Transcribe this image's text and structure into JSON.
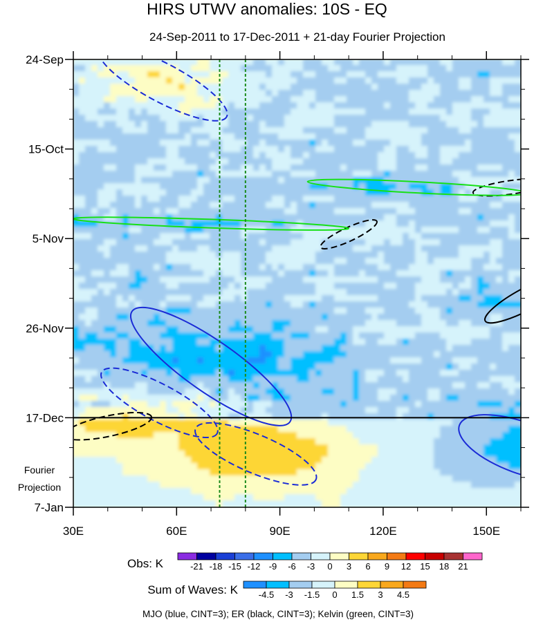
{
  "chart_data": {
    "type": "heatmap",
    "title": "HIRS UTWV anomalies: 10S - EQ",
    "subtitle": "24-Sep-2011 to 17-Dec-2011 + 21-day Fourier Projection",
    "x_axis": {
      "range": [
        30,
        160
      ],
      "units": "degrees east",
      "ticks": [
        30,
        60,
        90,
        120,
        150
      ],
      "tick_labels": [
        "30E",
        "60E",
        "90E",
        "120E",
        "150E"
      ]
    },
    "y_axis": {
      "range_days": [
        0,
        105
      ],
      "start": "24-Sep-2011",
      "ticks_days": [
        0,
        21,
        42,
        63,
        84,
        105
      ],
      "tick_labels": [
        "24-Sep",
        "15-Oct",
        "5-Nov",
        "26-Nov",
        "17-Dec",
        "7-Jan"
      ],
      "minor_tick_step_days": 7
    },
    "observation_end_day": 84,
    "projection_label_lines": [
      "Fourier",
      "Projection"
    ],
    "reference_longitudes": [
      72.5,
      80
    ],
    "obs_colorbar": {
      "label": "Obs: K",
      "levels": [
        -21,
        -18,
        -15,
        -12,
        -9,
        -6,
        -3,
        0,
        3,
        6,
        9,
        12,
        15,
        18,
        21
      ],
      "colors": [
        "#8a2be2",
        "#0000a0",
        "#1a3fd6",
        "#3a6ee8",
        "#1e90ff",
        "#00bfff",
        "#a4cdf0",
        "#d6f3fb",
        "#fdfdc4",
        "#fdd636",
        "#f9a81c",
        "#f47a14",
        "#ff0000",
        "#c80000",
        "#a83232",
        "#ff66cc"
      ]
    },
    "waves_colorbar": {
      "label": "Sum of Waves: K",
      "levels": [
        -4.5,
        -3,
        -1.5,
        0,
        1.5,
        3,
        4.5
      ],
      "colors": [
        "#1e90ff",
        "#00bfff",
        "#a4cdf0",
        "#d6f3fb",
        "#fdfdc4",
        "#fdd636",
        "#f9a81c",
        "#f47a14"
      ]
    },
    "contours": [
      {
        "wave": "MJO",
        "color": "#1a2bd6",
        "sign": "negative",
        "center": [
          56,
          5.5
        ],
        "semi_axes": [
          21,
          4.5
        ],
        "tilt_deg": 28
      },
      {
        "wave": "MJO",
        "color": "#1a2bd6",
        "sign": "positive",
        "center": [
          70,
          72
        ],
        "semi_axes": [
          28,
          6
        ],
        "tilt_deg": 35
      },
      {
        "wave": "MJO",
        "color": "#1a2bd6",
        "sign": "negative",
        "center": [
          55,
          80.5
        ],
        "semi_axes": [
          19,
          4.3
        ],
        "tilt_deg": 28
      },
      {
        "wave": "MJO",
        "color": "#1a2bd6",
        "sign": "negative",
        "center": [
          83,
          92.5
        ],
        "semi_axes": [
          19,
          4.5
        ],
        "tilt_deg": 23
      },
      {
        "wave": "MJO",
        "color": "#1a2bd6",
        "sign": "positive",
        "center": [
          160,
          91
        ],
        "semi_axes": [
          19,
          6
        ],
        "tilt_deg": 20
      },
      {
        "wave": "ER",
        "color": "#000000",
        "sign": "negative",
        "center": [
          40,
          86
        ],
        "semi_axes": [
          13,
          2.4
        ],
        "tilt_deg": -12
      },
      {
        "wave": "ER",
        "color": "#000000",
        "sign": "negative",
        "center": [
          110,
          41
        ],
        "semi_axes": [
          9,
          1.6
        ],
        "tilt_deg": -25
      },
      {
        "wave": "ER",
        "color": "#000000",
        "sign": "negative",
        "center": [
          157,
          30
        ],
        "semi_axes": [
          11,
          1.6
        ],
        "tilt_deg": -8
      },
      {
        "wave": "ER",
        "color": "#000000",
        "sign": "positive",
        "center": [
          162,
          56
        ],
        "semi_axes": [
          14,
          2.6
        ],
        "tilt_deg": -28
      },
      {
        "wave": "Kelvin",
        "color": "#16e016",
        "sign": "positive",
        "center": [
          130,
          30
        ],
        "semi_axes": [
          32,
          1.3
        ],
        "tilt_deg": 3
      },
      {
        "wave": "Kelvin",
        "color": "#16e016",
        "sign": "positive",
        "center": [
          70,
          38.5
        ],
        "semi_axes": [
          40,
          1.0
        ],
        "tilt_deg": 2
      }
    ],
    "footnote": "MJO (blue, CINT=3); ER (black, CINT=3); Kelvin (green, CINT=3)"
  }
}
